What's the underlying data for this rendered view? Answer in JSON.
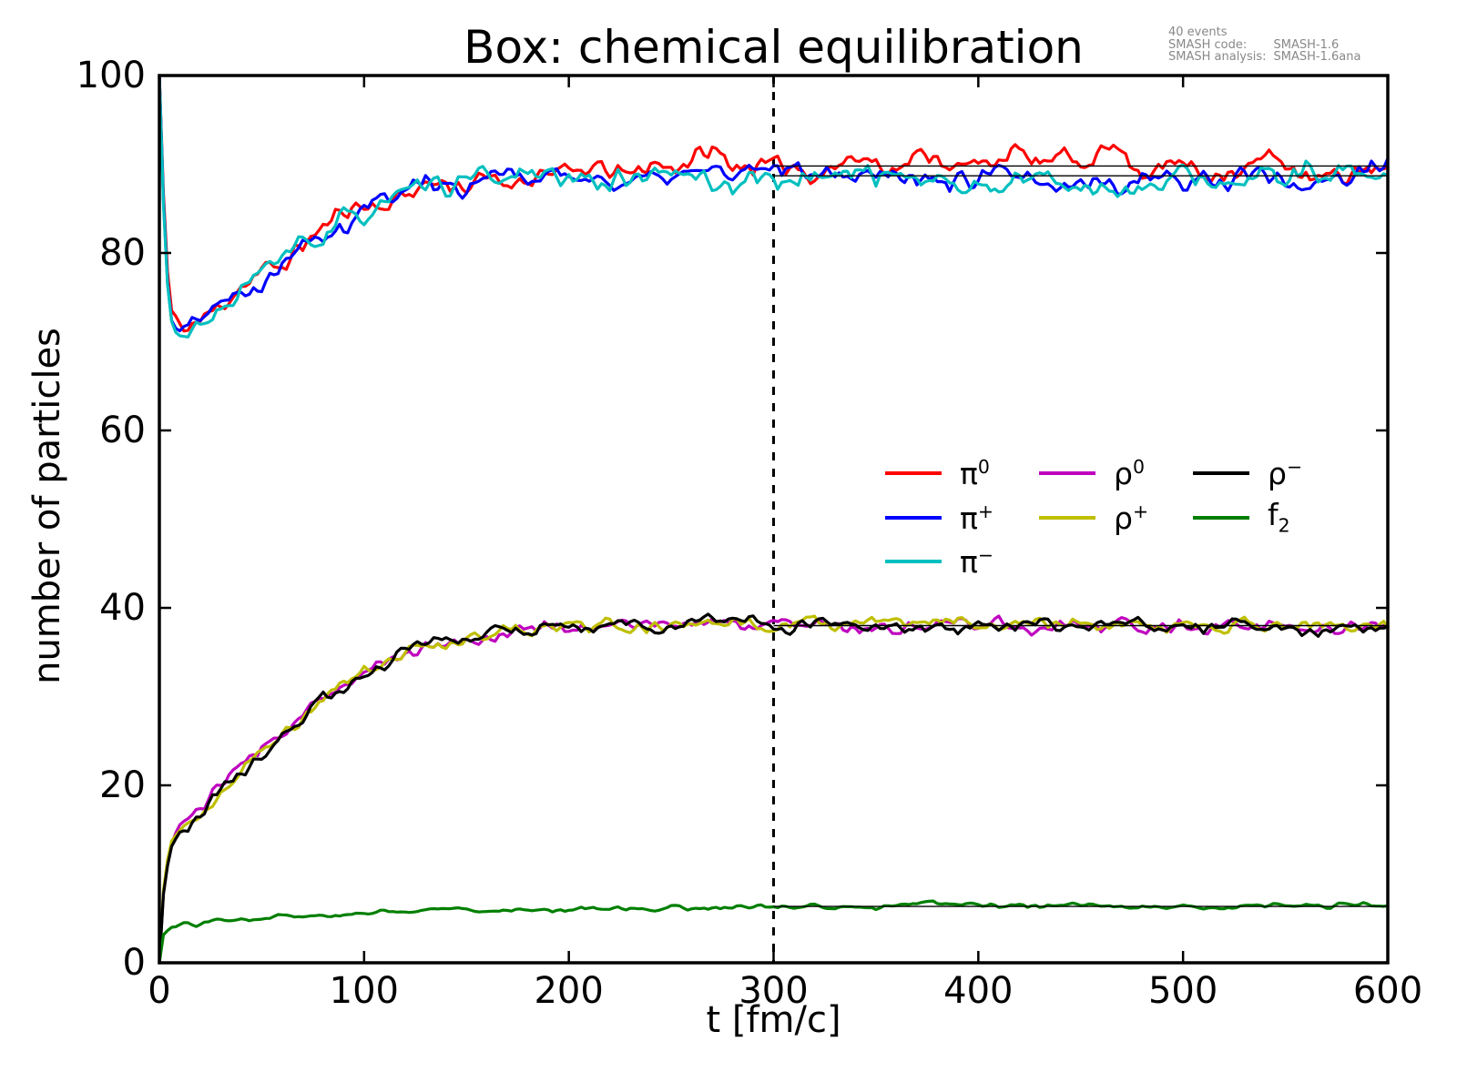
{
  "annotation": {
    "events": "40 events",
    "code_label": "SMASH code:",
    "code_value": "SMASH-1.6",
    "analysis_label": "SMASH analysis:",
    "analysis_value": "SMASH-1.6ana"
  },
  "legend": {
    "entries": [
      {
        "base": "π",
        "script": "0",
        "script_type": "sup",
        "color": "#ff0000",
        "column": 0,
        "row": 0
      },
      {
        "base": "π",
        "script": "+",
        "script_type": "sup",
        "color": "#0000ff",
        "column": 0,
        "row": 1
      },
      {
        "base": "π",
        "script": "−",
        "script_type": "sup",
        "color": "#00bfbf",
        "column": 0,
        "row": 2
      },
      {
        "base": "ρ",
        "script": "0",
        "script_type": "sup",
        "color": "#bf00bf",
        "column": 1,
        "row": 0
      },
      {
        "base": "ρ",
        "script": "+",
        "script_type": "sup",
        "color": "#bfbf00",
        "column": 1,
        "row": 1
      },
      {
        "base": "ρ",
        "script": "−",
        "script_type": "sup",
        "color": "#000000",
        "column": 2,
        "row": 0
      },
      {
        "base": "f",
        "script": "2",
        "script_type": "sub",
        "color": "#007f00",
        "column": 2,
        "row": 1
      }
    ]
  },
  "chart_data": {
    "type": "line",
    "title": "Box: chemical equilibration",
    "xlabel": "t [fm/c]",
    "ylabel": "number of particles",
    "xlim": [
      0,
      600
    ],
    "ylim": [
      0,
      100
    ],
    "x_ticks": [
      0,
      100,
      200,
      300,
      400,
      500,
      600
    ],
    "y_ticks": [
      0,
      20,
      40,
      60,
      80,
      100
    ],
    "grid": false,
    "legend_position": "center-right",
    "frame_color": "#000000",
    "equilibration_marker": {
      "type": "vertical-dashed-line",
      "x": 300,
      "color": "#000000"
    },
    "average_lines": [
      {
        "label": "pion equilibrium average (upper)",
        "from": 300,
        "to": 600,
        "value": 89.8
      },
      {
        "label": "pion equilibrium average (lower)",
        "from": 300,
        "to": 600,
        "value": 88.7
      },
      {
        "label": "rho equilibrium average",
        "from": 300,
        "to": 600,
        "value": 38.0
      },
      {
        "label": "f2 equilibrium average",
        "from": 300,
        "to": 600,
        "value": 6.35
      }
    ],
    "series": [
      {
        "name": "pi0",
        "color": "#ff0000",
        "seed": 11,
        "noise": 1.4,
        "anchors": [
          [
            0,
            100
          ],
          [
            3,
            80
          ],
          [
            6,
            73.5
          ],
          [
            10,
            72
          ],
          [
            16,
            72.2
          ],
          [
            25,
            73.2
          ],
          [
            35,
            74.5
          ],
          [
            45,
            76
          ],
          [
            55,
            78
          ],
          [
            65,
            80
          ],
          [
            75,
            82
          ],
          [
            85,
            83.5
          ],
          [
            95,
            85
          ],
          [
            105,
            86
          ],
          [
            115,
            86.5
          ],
          [
            125,
            87
          ],
          [
            140,
            87.5
          ],
          [
            155,
            88
          ],
          [
            170,
            88.3
          ],
          [
            190,
            88.8
          ],
          [
            210,
            89
          ],
          [
            230,
            89.3
          ],
          [
            250,
            90
          ],
          [
            265,
            90.8
          ],
          [
            280,
            90
          ],
          [
            300,
            89.2
          ],
          [
            315,
            89
          ],
          [
            330,
            89.3
          ],
          [
            345,
            90.3
          ],
          [
            360,
            90
          ],
          [
            375,
            91.3
          ],
          [
            390,
            90
          ],
          [
            405,
            91
          ],
          [
            420,
            91.5
          ],
          [
            435,
            90.5
          ],
          [
            450,
            90.8
          ],
          [
            465,
            92
          ],
          [
            480,
            90
          ],
          [
            495,
            89.8
          ],
          [
            510,
            88.8
          ],
          [
            525,
            89.5
          ],
          [
            540,
            90.3
          ],
          [
            555,
            89
          ],
          [
            570,
            88.5
          ],
          [
            585,
            89.3
          ],
          [
            600,
            88.3
          ]
        ]
      },
      {
        "name": "pi+",
        "color": "#0000ff",
        "seed": 22,
        "noise": 1.4,
        "anchors": [
          [
            0,
            100
          ],
          [
            3,
            79
          ],
          [
            6,
            73
          ],
          [
            10,
            71.5
          ],
          [
            16,
            72
          ],
          [
            25,
            73.5
          ],
          [
            35,
            75
          ],
          [
            45,
            76.5
          ],
          [
            55,
            78.5
          ],
          [
            65,
            80.5
          ],
          [
            75,
            81.8
          ],
          [
            85,
            83.2
          ],
          [
            95,
            84.5
          ],
          [
            105,
            85.8
          ],
          [
            115,
            86.5
          ],
          [
            125,
            87.5
          ],
          [
            140,
            88
          ],
          [
            155,
            88.3
          ],
          [
            170,
            88.5
          ],
          [
            190,
            89
          ],
          [
            210,
            88.6
          ],
          [
            230,
            89
          ],
          [
            250,
            89
          ],
          [
            265,
            89.5
          ],
          [
            280,
            89
          ],
          [
            300,
            89.3
          ],
          [
            320,
            88.5
          ],
          [
            340,
            88.8
          ],
          [
            360,
            88.3
          ],
          [
            380,
            88
          ],
          [
            400,
            88.5
          ],
          [
            420,
            87.8
          ],
          [
            440,
            87.5
          ],
          [
            460,
            88.5
          ],
          [
            480,
            88
          ],
          [
            500,
            88.3
          ],
          [
            520,
            88.6
          ],
          [
            540,
            88
          ],
          [
            560,
            87.8
          ],
          [
            580,
            89
          ],
          [
            600,
            89.8
          ]
        ]
      },
      {
        "name": "pi-",
        "color": "#00bfbf",
        "seed": 33,
        "noise": 1.4,
        "anchors": [
          [
            0,
            100
          ],
          [
            3,
            78
          ],
          [
            6,
            72.5
          ],
          [
            10,
            71
          ],
          [
            16,
            71.6
          ],
          [
            25,
            73
          ],
          [
            35,
            74.8
          ],
          [
            45,
            76
          ],
          [
            55,
            78
          ],
          [
            65,
            80
          ],
          [
            75,
            81.5
          ],
          [
            85,
            83
          ],
          [
            95,
            84.3
          ],
          [
            105,
            85.5
          ],
          [
            115,
            86
          ],
          [
            125,
            86.8
          ],
          [
            140,
            87.5
          ],
          [
            155,
            88
          ],
          [
            170,
            88.3
          ],
          [
            190,
            89.3
          ],
          [
            210,
            88.5
          ],
          [
            230,
            89
          ],
          [
            250,
            89.3
          ],
          [
            265,
            88.8
          ],
          [
            280,
            88.3
          ],
          [
            300,
            88.8
          ],
          [
            320,
            88.5
          ],
          [
            340,
            88.8
          ],
          [
            360,
            88.5
          ],
          [
            380,
            88.3
          ],
          [
            400,
            88
          ],
          [
            420,
            88.3
          ],
          [
            440,
            88.8
          ],
          [
            460,
            88
          ],
          [
            480,
            87.8
          ],
          [
            500,
            88.5
          ],
          [
            520,
            88.3
          ],
          [
            540,
            88.6
          ],
          [
            560,
            88.3
          ],
          [
            580,
            88.8
          ],
          [
            600,
            89.3
          ]
        ]
      },
      {
        "name": "rho0",
        "color": "#bf00bf",
        "seed": 44,
        "noise": 0.85,
        "anchors": [
          [
            0,
            0
          ],
          [
            2,
            8
          ],
          [
            5,
            13
          ],
          [
            10,
            15
          ],
          [
            16,
            16.5
          ],
          [
            25,
            18.5
          ],
          [
            35,
            21
          ],
          [
            45,
            23
          ],
          [
            55,
            25
          ],
          [
            65,
            27
          ],
          [
            75,
            28.8
          ],
          [
            85,
            30.3
          ],
          [
            95,
            31.8
          ],
          [
            105,
            33.2
          ],
          [
            115,
            34.3
          ],
          [
            125,
            35.3
          ],
          [
            140,
            36.2
          ],
          [
            155,
            36.8
          ],
          [
            170,
            37.2
          ],
          [
            190,
            37.7
          ],
          [
            210,
            38
          ],
          [
            240,
            38
          ],
          [
            270,
            38.2
          ],
          [
            300,
            38
          ],
          [
            350,
            38
          ],
          [
            400,
            38.2
          ],
          [
            450,
            37.8
          ],
          [
            500,
            38
          ],
          [
            550,
            37.8
          ],
          [
            600,
            38
          ]
        ]
      },
      {
        "name": "rho+",
        "color": "#bfbf00",
        "seed": 55,
        "noise": 0.85,
        "anchors": [
          [
            0,
            0
          ],
          [
            2,
            8.2
          ],
          [
            5,
            13.2
          ],
          [
            10,
            15.2
          ],
          [
            16,
            16.4
          ],
          [
            25,
            18.3
          ],
          [
            35,
            20.8
          ],
          [
            45,
            23.2
          ],
          [
            55,
            25.2
          ],
          [
            65,
            26.8
          ],
          [
            75,
            29
          ],
          [
            85,
            30.5
          ],
          [
            95,
            31.6
          ],
          [
            105,
            33
          ],
          [
            115,
            34.5
          ],
          [
            125,
            35.5
          ],
          [
            140,
            36
          ],
          [
            155,
            37
          ],
          [
            170,
            37.3
          ],
          [
            190,
            37.8
          ],
          [
            210,
            37.9
          ],
          [
            240,
            38.1
          ],
          [
            270,
            38
          ],
          [
            300,
            38.1
          ],
          [
            350,
            38
          ],
          [
            400,
            38.4
          ],
          [
            450,
            38
          ],
          [
            500,
            38.2
          ],
          [
            550,
            37.9
          ],
          [
            600,
            38
          ]
        ]
      },
      {
        "name": "rho-",
        "color": "#000000",
        "seed": 66,
        "noise": 0.85,
        "anchors": [
          [
            0,
            0
          ],
          [
            2,
            7.8
          ],
          [
            5,
            12.8
          ],
          [
            10,
            14.8
          ],
          [
            16,
            16.6
          ],
          [
            25,
            18.6
          ],
          [
            35,
            20.6
          ],
          [
            45,
            22.8
          ],
          [
            55,
            24.8
          ],
          [
            65,
            27.2
          ],
          [
            75,
            28.6
          ],
          [
            85,
            30
          ],
          [
            95,
            32
          ],
          [
            105,
            33.4
          ],
          [
            115,
            34.2
          ],
          [
            125,
            35.4
          ],
          [
            140,
            36.4
          ],
          [
            155,
            37
          ],
          [
            170,
            37.4
          ],
          [
            190,
            37.9
          ],
          [
            210,
            38.2
          ],
          [
            240,
            38
          ],
          [
            270,
            38.3
          ],
          [
            300,
            38.2
          ],
          [
            350,
            38
          ],
          [
            400,
            38.1
          ],
          [
            450,
            38
          ],
          [
            500,
            38.1
          ],
          [
            550,
            37.8
          ],
          [
            600,
            38.1
          ]
        ]
      },
      {
        "name": "f2",
        "color": "#007f00",
        "seed": 77,
        "noise": 0.32,
        "anchors": [
          [
            0,
            0
          ],
          [
            2,
            3.2
          ],
          [
            5,
            3.9
          ],
          [
            10,
            4.2
          ],
          [
            20,
            4.5
          ],
          [
            30,
            4.8
          ],
          [
            45,
            5
          ],
          [
            60,
            5.2
          ],
          [
            80,
            5.5
          ],
          [
            100,
            5.7
          ],
          [
            130,
            5.9
          ],
          [
            160,
            6
          ],
          [
            200,
            6.1
          ],
          [
            250,
            6.2
          ],
          [
            300,
            6.2
          ],
          [
            350,
            6.3
          ],
          [
            378,
            6.9
          ],
          [
            390,
            6.4
          ],
          [
            450,
            6.4
          ],
          [
            500,
            6.3
          ],
          [
            550,
            6.4
          ],
          [
            600,
            6.5
          ]
        ]
      }
    ]
  }
}
